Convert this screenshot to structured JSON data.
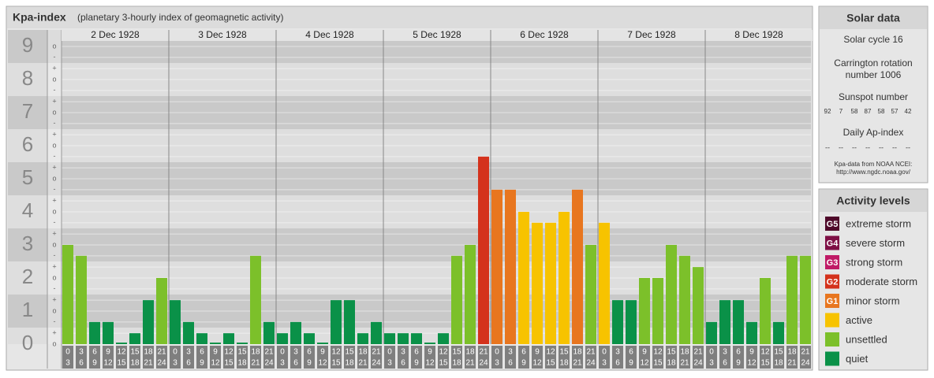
{
  "title": "Kpa-index",
  "subtitle": "(planetary 3-hourly index of geomagnetic activity)",
  "chart_data": {
    "type": "bar",
    "days": [
      "2 Dec 1928",
      "3 Dec 1928",
      "4 Dec 1928",
      "5 Dec 1928",
      "6 Dec 1928",
      "7 Dec 1928",
      "8 Dec 1928"
    ],
    "hours": [
      [
        "0",
        "3"
      ],
      [
        "3",
        "6"
      ],
      [
        "6",
        "9"
      ],
      [
        "9",
        "12"
      ],
      [
        "12",
        "15"
      ],
      [
        "15",
        "18"
      ],
      [
        "18",
        "21"
      ],
      [
        "21",
        "24"
      ]
    ],
    "ylim": [
      0,
      9.5
    ],
    "yticks": [
      0,
      1,
      2,
      3,
      4,
      5,
      6,
      7,
      8,
      9
    ],
    "subticks": [
      {
        "value": 0,
        "label": "o"
      },
      {
        "value": 0.33,
        "label": "+"
      },
      {
        "value": 0.67,
        "label": "-"
      },
      {
        "value": 1,
        "label": "o"
      },
      {
        "value": 1.33,
        "label": "+"
      },
      {
        "value": 1.67,
        "label": "-"
      },
      {
        "value": 2,
        "label": "o"
      },
      {
        "value": 2.33,
        "label": "+"
      },
      {
        "value": 2.67,
        "label": "-"
      },
      {
        "value": 3,
        "label": "o"
      },
      {
        "value": 3.33,
        "label": "+"
      },
      {
        "value": 3.67,
        "label": "-"
      },
      {
        "value": 4,
        "label": "o"
      },
      {
        "value": 4.33,
        "label": "+"
      },
      {
        "value": 4.67,
        "label": "-"
      },
      {
        "value": 5,
        "label": "o"
      },
      {
        "value": 5.33,
        "label": "+"
      },
      {
        "value": 5.67,
        "label": "-"
      },
      {
        "value": 6,
        "label": "o"
      },
      {
        "value": 6.33,
        "label": "+"
      },
      {
        "value": 6.67,
        "label": "-"
      },
      {
        "value": 7,
        "label": "o"
      },
      {
        "value": 7.33,
        "label": "+"
      },
      {
        "value": 7.67,
        "label": "-"
      },
      {
        "value": 8,
        "label": "o"
      },
      {
        "value": 8.33,
        "label": "+"
      },
      {
        "value": 8.67,
        "label": "-"
      },
      {
        "value": 9,
        "label": "o"
      }
    ],
    "values": [
      3,
      2.67,
      0.67,
      0.67,
      0,
      0.33,
      1.33,
      2,
      1.33,
      0.67,
      0.33,
      0,
      0.33,
      0,
      2.67,
      0.67,
      0.33,
      0.67,
      0.33,
      0,
      1.33,
      1.33,
      0.33,
      0.67,
      0.33,
      0.33,
      0.33,
      0,
      0.33,
      2.67,
      3,
      5.67,
      4.67,
      4.67,
      4,
      3.67,
      3.67,
      4,
      4.67,
      3,
      3.67,
      1.33,
      1.33,
      2,
      2,
      3,
      2.67,
      2.33,
      0.67,
      1.33,
      1.33,
      0.67,
      2,
      0.67,
      2.67,
      2.67
    ],
    "colors": [
      "#7cc02a",
      "#7cc02a",
      "#0a9148",
      "#0a9148",
      "#0a9148",
      "#0a9148",
      "#0a9148",
      "#7cc02a",
      "#0a9148",
      "#0a9148",
      "#0a9148",
      "#0a9148",
      "#0a9148",
      "#0a9148",
      "#7cc02a",
      "#0a9148",
      "#0a9148",
      "#0a9148",
      "#0a9148",
      "#0a9148",
      "#0a9148",
      "#0a9148",
      "#0a9148",
      "#0a9148",
      "#0a9148",
      "#0a9148",
      "#0a9148",
      "#0a9148",
      "#0a9148",
      "#7cc02a",
      "#7cc02a",
      "#d4321c",
      "#e8761f",
      "#e8761f",
      "#f7c300",
      "#f7c300",
      "#f7c300",
      "#f7c300",
      "#e8761f",
      "#7cc02a",
      "#f7c300",
      "#0a9148",
      "#0a9148",
      "#7cc02a",
      "#7cc02a",
      "#7cc02a",
      "#7cc02a",
      "#7cc02a",
      "#0a9148",
      "#0a9148",
      "#0a9148",
      "#0a9148",
      "#7cc02a",
      "#0a9148",
      "#7cc02a",
      "#7cc02a"
    ]
  },
  "solar": {
    "title": "Solar data",
    "cycle": "Solar cycle 16",
    "carrington": [
      "Carrington rotation",
      "number 1006"
    ],
    "sunspot_label": "Sunspot number",
    "sunspots": [
      92,
      7,
      58,
      87,
      58,
      57,
      42
    ],
    "ap_label": "Daily Ap-index",
    "ap": [
      "--",
      "--",
      "--",
      "--",
      "--",
      "--",
      "--"
    ],
    "source": [
      "Kpa-data from NOAA NCEI:",
      "http://www.ngdc.noaa.gov/"
    ]
  },
  "levels": {
    "title": "Activity levels",
    "items": [
      {
        "code": "G5",
        "name": "extreme storm",
        "color": "#4f0a2a"
      },
      {
        "code": "G4",
        "name": "severe storm",
        "color": "#7e0f45"
      },
      {
        "code": "G3",
        "name": "strong storm",
        "color": "#c01a66"
      },
      {
        "code": "G2",
        "name": "moderate storm",
        "color": "#d4321c"
      },
      {
        "code": "G1",
        "name": "minor storm",
        "color": "#e8761f"
      },
      {
        "name": "active",
        "color": "#f7c300"
      },
      {
        "name": "unsettled",
        "color": "#7cc02a"
      },
      {
        "name": "quiet",
        "color": "#0a9148"
      }
    ]
  }
}
